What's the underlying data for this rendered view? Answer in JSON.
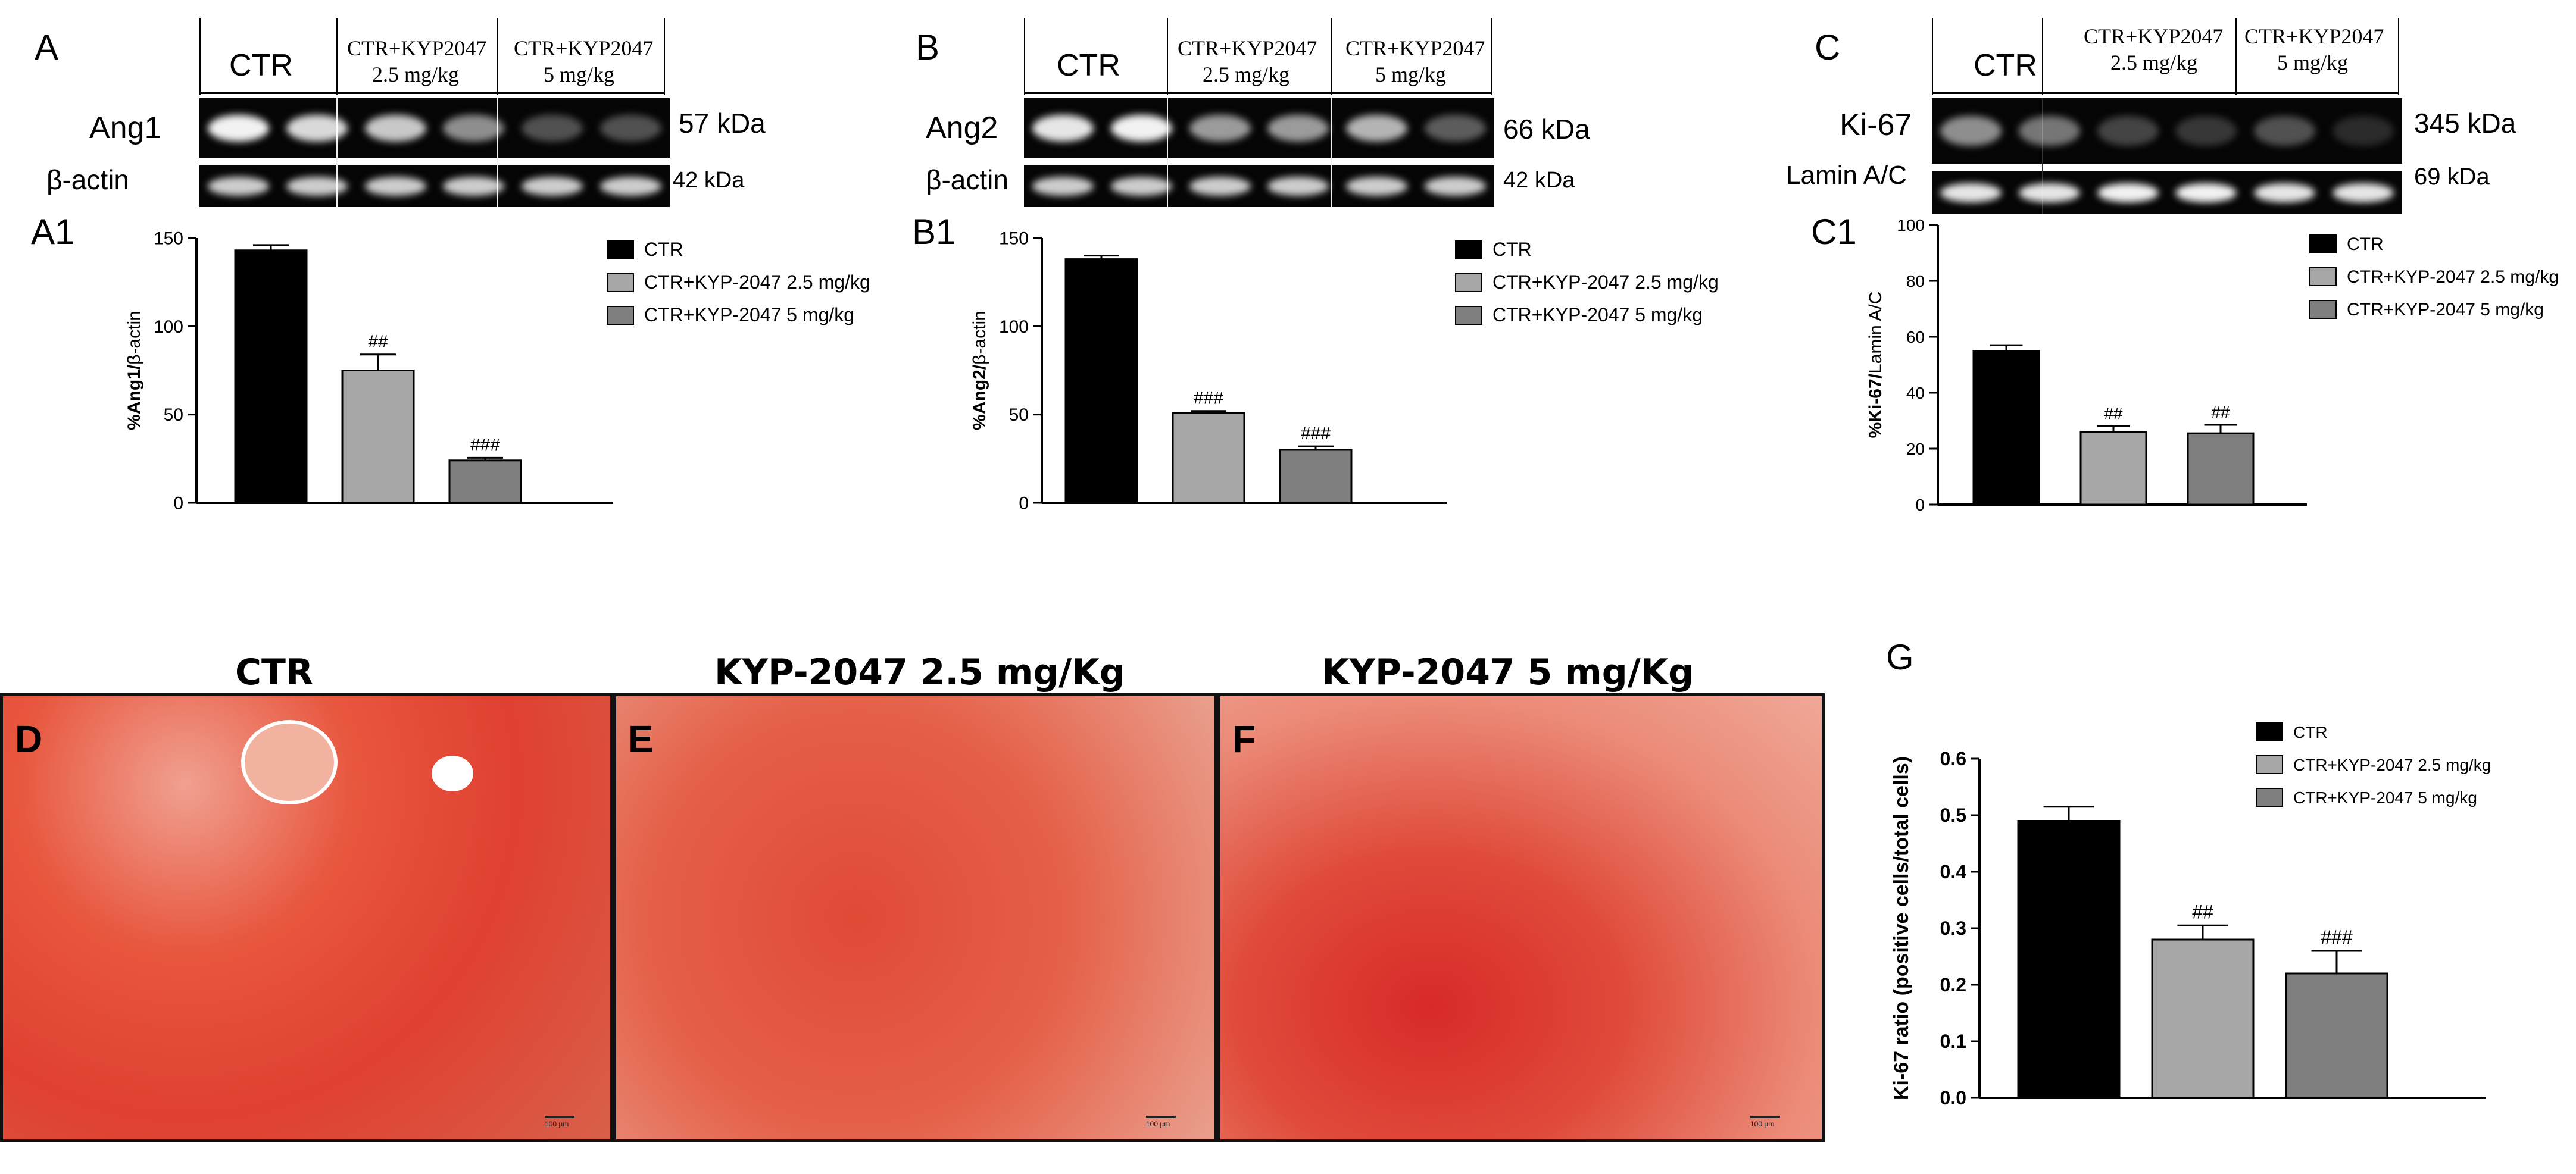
{
  "panel_labels": {
    "A": "A",
    "A1": "A1",
    "B": "B",
    "B1": "B1",
    "C": "C",
    "C1": "C1",
    "D": "D",
    "E": "E",
    "F": "F",
    "G": "G"
  },
  "western_blots": [
    {
      "id": "A",
      "lanes": [
        "CTR",
        "CTR+KYP2047\n2.5 mg/kg",
        "CTR+KYP2047\n5 mg/kg"
      ],
      "lane_label_1": "CTR",
      "lane_label_2a": "CTR+KYP2047",
      "lane_label_2b": "2.5 mg/kg",
      "lane_label_3a": "CTR+KYP2047",
      "lane_label_3b": "5 mg/kg",
      "target": "Ang1",
      "target_kda": "57 kDa",
      "loading": "β-actin",
      "loading_kda": "42 kDa",
      "target_intensity": [
        0.95,
        0.85,
        0.78,
        0.55,
        0.3,
        0.3
      ],
      "loading_intensity": [
        0.8,
        0.8,
        0.8,
        0.8,
        0.8,
        0.8
      ]
    },
    {
      "id": "B",
      "lane_label_1": "CTR",
      "lane_label_2a": "CTR+KYP2047",
      "lane_label_2b": "2.5 mg/kg",
      "lane_label_3a": "CTR+KYP2047",
      "lane_label_3b": "5 mg/kg",
      "target": "Ang2",
      "target_kda": "66 kDa",
      "loading": "β-actin",
      "loading_kda": "42 kDa",
      "target_intensity": [
        0.9,
        0.95,
        0.6,
        0.6,
        0.7,
        0.35
      ],
      "loading_intensity": [
        0.8,
        0.8,
        0.8,
        0.8,
        0.8,
        0.8
      ]
    },
    {
      "id": "C",
      "lane_label_1": "CTR",
      "lane_label_2a": "CTR+KYP2047",
      "lane_label_2b": "2.5 mg/kg",
      "lane_label_3a": "CTR+KYP2047",
      "lane_label_3b": "5 mg/kg",
      "target": "Ki-67",
      "target_kda": "345 kDa",
      "loading": "Lamin A/C",
      "loading_kda": "69 kDa",
      "target_intensity": [
        0.55,
        0.45,
        0.25,
        0.2,
        0.3,
        0.15
      ],
      "loading_intensity": [
        0.9,
        0.9,
        0.95,
        0.95,
        0.9,
        0.9
      ]
    }
  ],
  "histology": [
    {
      "id": "D",
      "title": "CTR",
      "scale": "100 µm"
    },
    {
      "id": "E",
      "title": "KYP-2047  2.5 mg/Kg",
      "scale": "100 µm"
    },
    {
      "id": "F",
      "title": "KYP-2047  5 mg/Kg",
      "scale": "100 µm"
    }
  ],
  "colors": {
    "ctr": "#000000",
    "low": "#a6a6a6",
    "high": "#7f7f7f",
    "stain": "#e0453c"
  },
  "chart_data": [
    {
      "id": "A1",
      "type": "bar",
      "categories": [
        "CTR",
        "CTR+KYP-2047 2.5 mg/kg",
        "CTR+KYP-2047 5 mg/kg"
      ],
      "values": [
        143,
        75,
        24
      ],
      "errors": [
        3,
        9,
        1.5
      ],
      "annotations": [
        "",
        "##",
        "###"
      ],
      "ylabel_pre": "%Ang1/",
      "ylabel_post": "β-actin",
      "ylim": [
        0,
        150
      ],
      "yticks": [
        "0",
        "50",
        "100",
        "150"
      ],
      "legend": [
        "CTR",
        "CTR+KYP-2047 2.5 mg/kg",
        "CTR+KYP-2047 5 mg/kg"
      ]
    },
    {
      "id": "B1",
      "type": "bar",
      "categories": [
        "CTR",
        "CTR+KYP-2047 2.5 mg/kg",
        "CTR+KYP-2047 5 mg/kg"
      ],
      "values": [
        138,
        51,
        30
      ],
      "errors": [
        2,
        1,
        2
      ],
      "annotations": [
        "",
        "###",
        "###"
      ],
      "ylabel_pre": "%Ang2/",
      "ylabel_post": "β-actin",
      "ylim": [
        0,
        150
      ],
      "yticks": [
        "0",
        "50",
        "100",
        "150"
      ],
      "legend": [
        "CTR",
        "CTR+KYP-2047 2.5 mg/kg",
        "CTR+KYP-2047 5 mg/kg"
      ]
    },
    {
      "id": "C1",
      "type": "bar",
      "categories": [
        "CTR",
        "CTR+KYP-2047 2.5 mg/kg",
        "CTR+KYP-2047 5 mg/kg"
      ],
      "values": [
        55,
        26,
        25.5
      ],
      "errors": [
        2,
        2,
        3
      ],
      "annotations": [
        "",
        "##",
        "##"
      ],
      "ylabel_pre": "%Ki-67/",
      "ylabel_post": "Lamin A/C",
      "ylim": [
        0,
        100
      ],
      "yticks": [
        "0",
        "20",
        "40",
        "60",
        "80",
        "100"
      ],
      "legend": [
        "CTR",
        "CTR+KYP-2047 2.5 mg/kg",
        "CTR+KYP-2047 5 mg/kg"
      ]
    },
    {
      "id": "G",
      "type": "bar",
      "categories": [
        "CTR",
        "CTR+KYP-2047 2.5 mg/kg",
        "CTR+KYP-2047 5 mg/kg"
      ],
      "values": [
        0.49,
        0.28,
        0.22
      ],
      "errors": [
        0.025,
        0.025,
        0.04
      ],
      "annotations": [
        "",
        "##",
        "###"
      ],
      "ylabel_pre": "Ki-67 ratio (positive cells/total cells)",
      "ylabel_post": "",
      "ylim": [
        0,
        0.6
      ],
      "yticks": [
        "0.0",
        "0.1",
        "0.2",
        "0.3",
        "0.4",
        "0.5",
        "0.6"
      ],
      "legend": [
        "CTR",
        "CTR+KYP-2047 2.5 mg/kg",
        "CTR+KYP-2047 5 mg/kg"
      ]
    }
  ]
}
